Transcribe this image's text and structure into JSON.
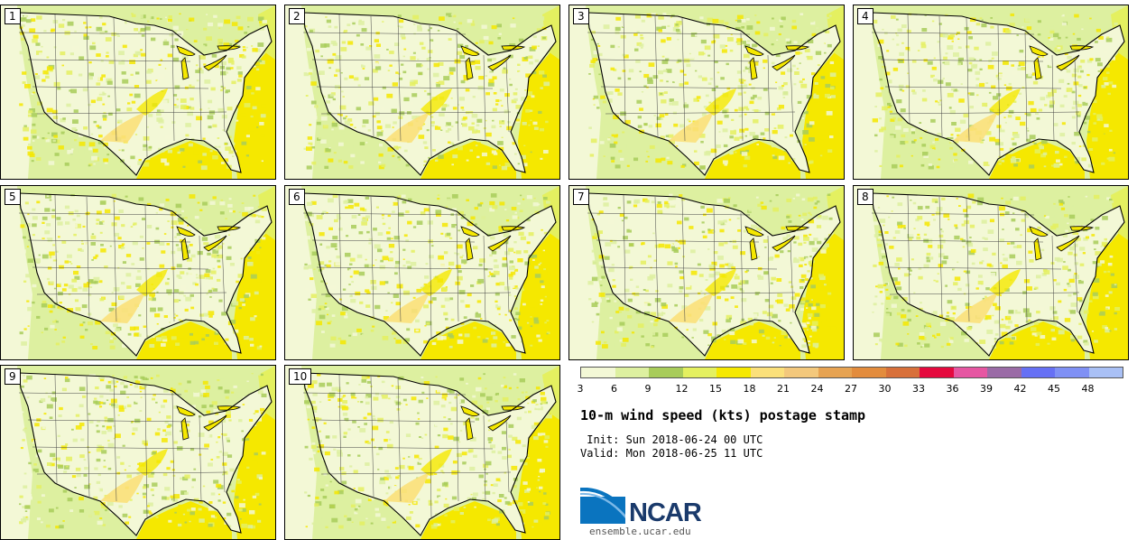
{
  "members": [
    "1",
    "2",
    "3",
    "4",
    "5",
    "6",
    "7",
    "8",
    "9",
    "10"
  ],
  "colorbar": {
    "colors": [
      "#f3f8d6",
      "#ddf0a0",
      "#a8cc5a",
      "#e4f060",
      "#f5e800",
      "#fbe07a",
      "#f3c87c",
      "#e7a352",
      "#e38c3d",
      "#d8703a",
      "#e5093e",
      "#e656a2",
      "#9a6ba6",
      "#6670f4",
      "#7f90f4",
      "#a9c0f5"
    ],
    "tick_labels": [
      "3",
      "6",
      "9",
      "12",
      "15",
      "18",
      "21",
      "24",
      "27",
      "30",
      "33",
      "36",
      "39",
      "42",
      "45",
      "48"
    ]
  },
  "title": "10-m wind speed (kts) postage stamp",
  "init_line": " Init: Sun 2018-06-24 00 UTC",
  "valid_line": "Valid: Mon 2018-06-25 11 UTC",
  "logo_text": "NCAR",
  "url": "ensemble.ucar.edu"
}
